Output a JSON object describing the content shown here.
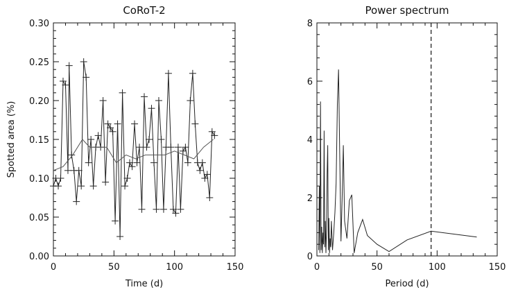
{
  "chart_data": [
    {
      "type": "line",
      "title": "CoRoT-2",
      "xlabel": "Time (d)",
      "ylabel": "Spotted area (%)",
      "xlim": [
        0,
        150
      ],
      "ylim": [
        0.0,
        0.3
      ],
      "xticks": [
        "0",
        "50",
        "100",
        "150"
      ],
      "yticks": [
        "0.00",
        "0.05",
        "0.10",
        "0.15",
        "0.20",
        "0.25",
        "0.30"
      ],
      "series": [
        {
          "style": "line-with-plus-markers",
          "x": [
            0,
            2,
            4,
            6,
            8,
            10,
            12,
            13,
            15,
            17,
            19,
            21,
            23,
            25,
            27,
            29,
            31,
            33,
            35,
            37,
            39,
            41,
            43,
            45,
            47,
            49,
            51,
            53,
            55,
            57,
            59,
            61,
            63,
            65,
            67,
            69,
            71,
            73,
            75,
            77,
            79,
            81,
            83,
            85,
            87,
            89,
            91,
            93,
            95,
            97,
            99,
            101,
            103,
            105,
            107,
            109,
            111,
            113,
            115,
            117,
            119,
            121,
            123,
            125,
            127,
            129,
            131,
            133
          ],
          "y": [
            0.09,
            0.1,
            0.09,
            0.1,
            0.225,
            0.22,
            0.11,
            0.245,
            0.13,
            0.11,
            0.07,
            0.11,
            0.09,
            0.25,
            0.23,
            0.12,
            0.15,
            0.09,
            0.14,
            0.155,
            0.14,
            0.2,
            0.095,
            0.17,
            0.165,
            0.16,
            0.045,
            0.17,
            0.025,
            0.21,
            0.09,
            0.1,
            0.12,
            0.115,
            0.17,
            0.12,
            0.14,
            0.06,
            0.205,
            0.14,
            0.15,
            0.19,
            0.12,
            0.06,
            0.2,
            0.15,
            0.06,
            0.14,
            0.235,
            0.14,
            0.06,
            0.055,
            0.14,
            0.06,
            0.135,
            0.14,
            0.12,
            0.2,
            0.235,
            0.17,
            0.12,
            0.11,
            0.12,
            0.1,
            0.105,
            0.075,
            0.16,
            0.155
          ]
        },
        {
          "style": "smooth-line",
          "x": [
            0,
            8,
            16,
            24,
            30,
            36,
            44,
            52,
            60,
            68,
            76,
            84,
            92,
            100,
            108,
            116,
            124,
            132
          ],
          "y": [
            0.11,
            0.115,
            0.13,
            0.15,
            0.14,
            0.14,
            0.14,
            0.12,
            0.13,
            0.125,
            0.13,
            0.13,
            0.13,
            0.135,
            0.13,
            0.125,
            0.14,
            0.15
          ]
        }
      ]
    },
    {
      "type": "line",
      "title": "Power spectrum",
      "xlabel": "Period (d)",
      "ylabel": "",
      "xlim": [
        0,
        150
      ],
      "ylim": [
        0,
        8
      ],
      "xticks": [
        "0",
        "50",
        "100",
        "150"
      ],
      "yticks": [
        "0",
        "2",
        "4",
        "6",
        "8"
      ],
      "vline_x": 95,
      "series": [
        {
          "x": [
            1.5,
            2.0,
            2.5,
            3.0,
            3.5,
            4.0,
            4.5,
            5.0,
            5.5,
            6.0,
            6.5,
            7.0,
            7.5,
            8.0,
            8.5,
            9.0,
            9.5,
            10.0,
            10.5,
            11.0,
            11.5,
            12.0,
            13.0,
            14.0,
            15.0,
            16.0,
            17.0,
            18.0,
            19.0,
            20.0,
            21.0,
            22.0,
            23.0,
            24.0,
            25.0,
            27.0,
            29.0,
            31.0,
            34.0,
            38.0,
            42.0,
            50.0,
            60.0,
            75.0,
            95.0,
            133.0
          ],
          "y": [
            0.2,
            2.4,
            0.1,
            5.3,
            0.2,
            1.0,
            0.1,
            0.8,
            0.4,
            4.3,
            0.3,
            1.2,
            0.1,
            0.9,
            2.8,
            3.8,
            0.2,
            1.3,
            0.1,
            0.6,
            0.3,
            1.2,
            0.2,
            0.8,
            1.5,
            2.5,
            5.2,
            6.4,
            3.5,
            0.5,
            2.0,
            3.8,
            1.2,
            0.9,
            0.6,
            1.9,
            2.1,
            0.1,
            0.8,
            1.25,
            0.7,
            0.4,
            0.15,
            0.55,
            0.85,
            0.65
          ]
        }
      ]
    }
  ]
}
